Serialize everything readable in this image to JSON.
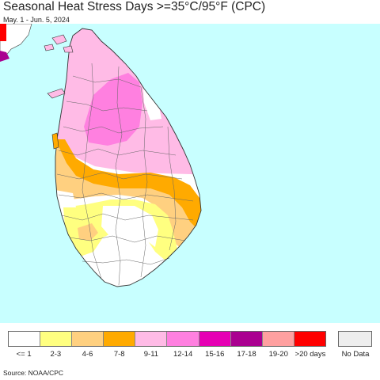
{
  "header": {
    "title": "Seasonal Heat Stress Days >=35°C/95°F (CPC)",
    "subtitle": "May. 1 - Jun. 5, 2024"
  },
  "map": {
    "ocean_color": "#c8ffff",
    "land_default_color": "#ffffff",
    "boundary_color": "#555555",
    "regions": [
      {
        "name": "north",
        "category": "9-11"
      },
      {
        "name": "north-central",
        "category": "12-14"
      },
      {
        "name": "east-coast",
        "category": "9-11"
      },
      {
        "name": "central-band",
        "category": "7-8"
      },
      {
        "name": "west-coast",
        "category": "4-6"
      },
      {
        "name": "south-east",
        "category": "4-6"
      },
      {
        "name": "south-central",
        "category": "2-3"
      },
      {
        "name": "south",
        "category": "<= 1"
      }
    ]
  },
  "legend": {
    "items": [
      {
        "label": "<= 1",
        "color": "#ffffff"
      },
      {
        "label": "2-3",
        "color": "#ffff80"
      },
      {
        "label": "4-6",
        "color": "#ffd080"
      },
      {
        "label": "7-8",
        "color": "#ffaa00"
      },
      {
        "label": "9-11",
        "color": "#ffbbe6"
      },
      {
        "label": "12-14",
        "color": "#ff80e0"
      },
      {
        "label": "15-16",
        "color": "#e600b4"
      },
      {
        "label": "17-18",
        "color": "#aa0090"
      },
      {
        "label": "19-20",
        "color": "#ffa0a0"
      },
      {
        "label": ">20 days",
        "color": "#ff0000"
      }
    ],
    "no_data": {
      "label": "No Data",
      "color": "#eeeeee"
    }
  },
  "footer": {
    "source": "Source: NOAA/CPC"
  }
}
